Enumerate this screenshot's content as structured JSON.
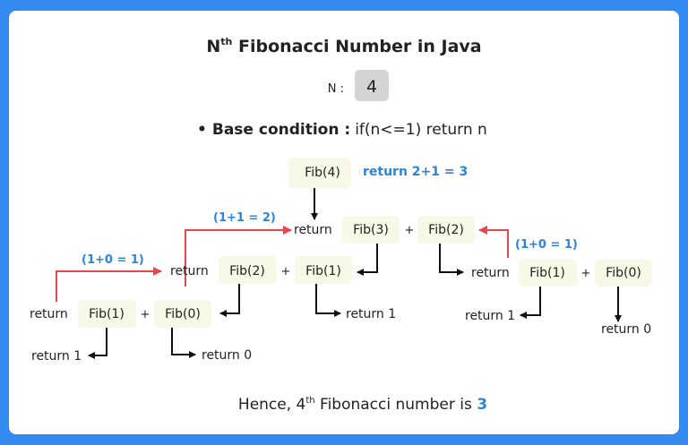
{
  "title": {
    "prefix": "N",
    "sup": "th",
    "rest": " Fibonacci Number in Java"
  },
  "input": {
    "label": "N :",
    "value": "4"
  },
  "base_condition": {
    "bullet": "•",
    "label": "Base condition :",
    "code": "if(n<=1) return n"
  },
  "tree": {
    "root": "Fib(4)",
    "root_result": "return 2+1 = 3",
    "return_word": "return",
    "plus": "+",
    "level1": {
      "left": "Fib(3)",
      "right": "Fib(2)",
      "left_result": "(1+1 = 2)"
    },
    "level2_left": {
      "left": "Fib(2)",
      "right": "Fib(1)",
      "left_result": "(1+0 = 1)",
      "right_return": "return 1"
    },
    "level3_left": {
      "left": "Fib(1)",
      "right": "Fib(0)",
      "left_return": "return 1",
      "right_return": "return 0"
    },
    "level2_right": {
      "left": "Fib(1)",
      "right": "Fib(0)",
      "result": "(1+0 = 1)",
      "left_return": "return 1",
      "right_return": "return 0"
    }
  },
  "conclusion": {
    "prefix": "Hence, 4",
    "sup": "th",
    "middle": " Fibonacci number is ",
    "answer": "3"
  },
  "colors": {
    "border": "#348cf0",
    "accent_blue": "#2a85db",
    "arrow_red": "#e8464d",
    "node_bg": "#f8f8e6",
    "input_bg": "#d4d4d4"
  }
}
